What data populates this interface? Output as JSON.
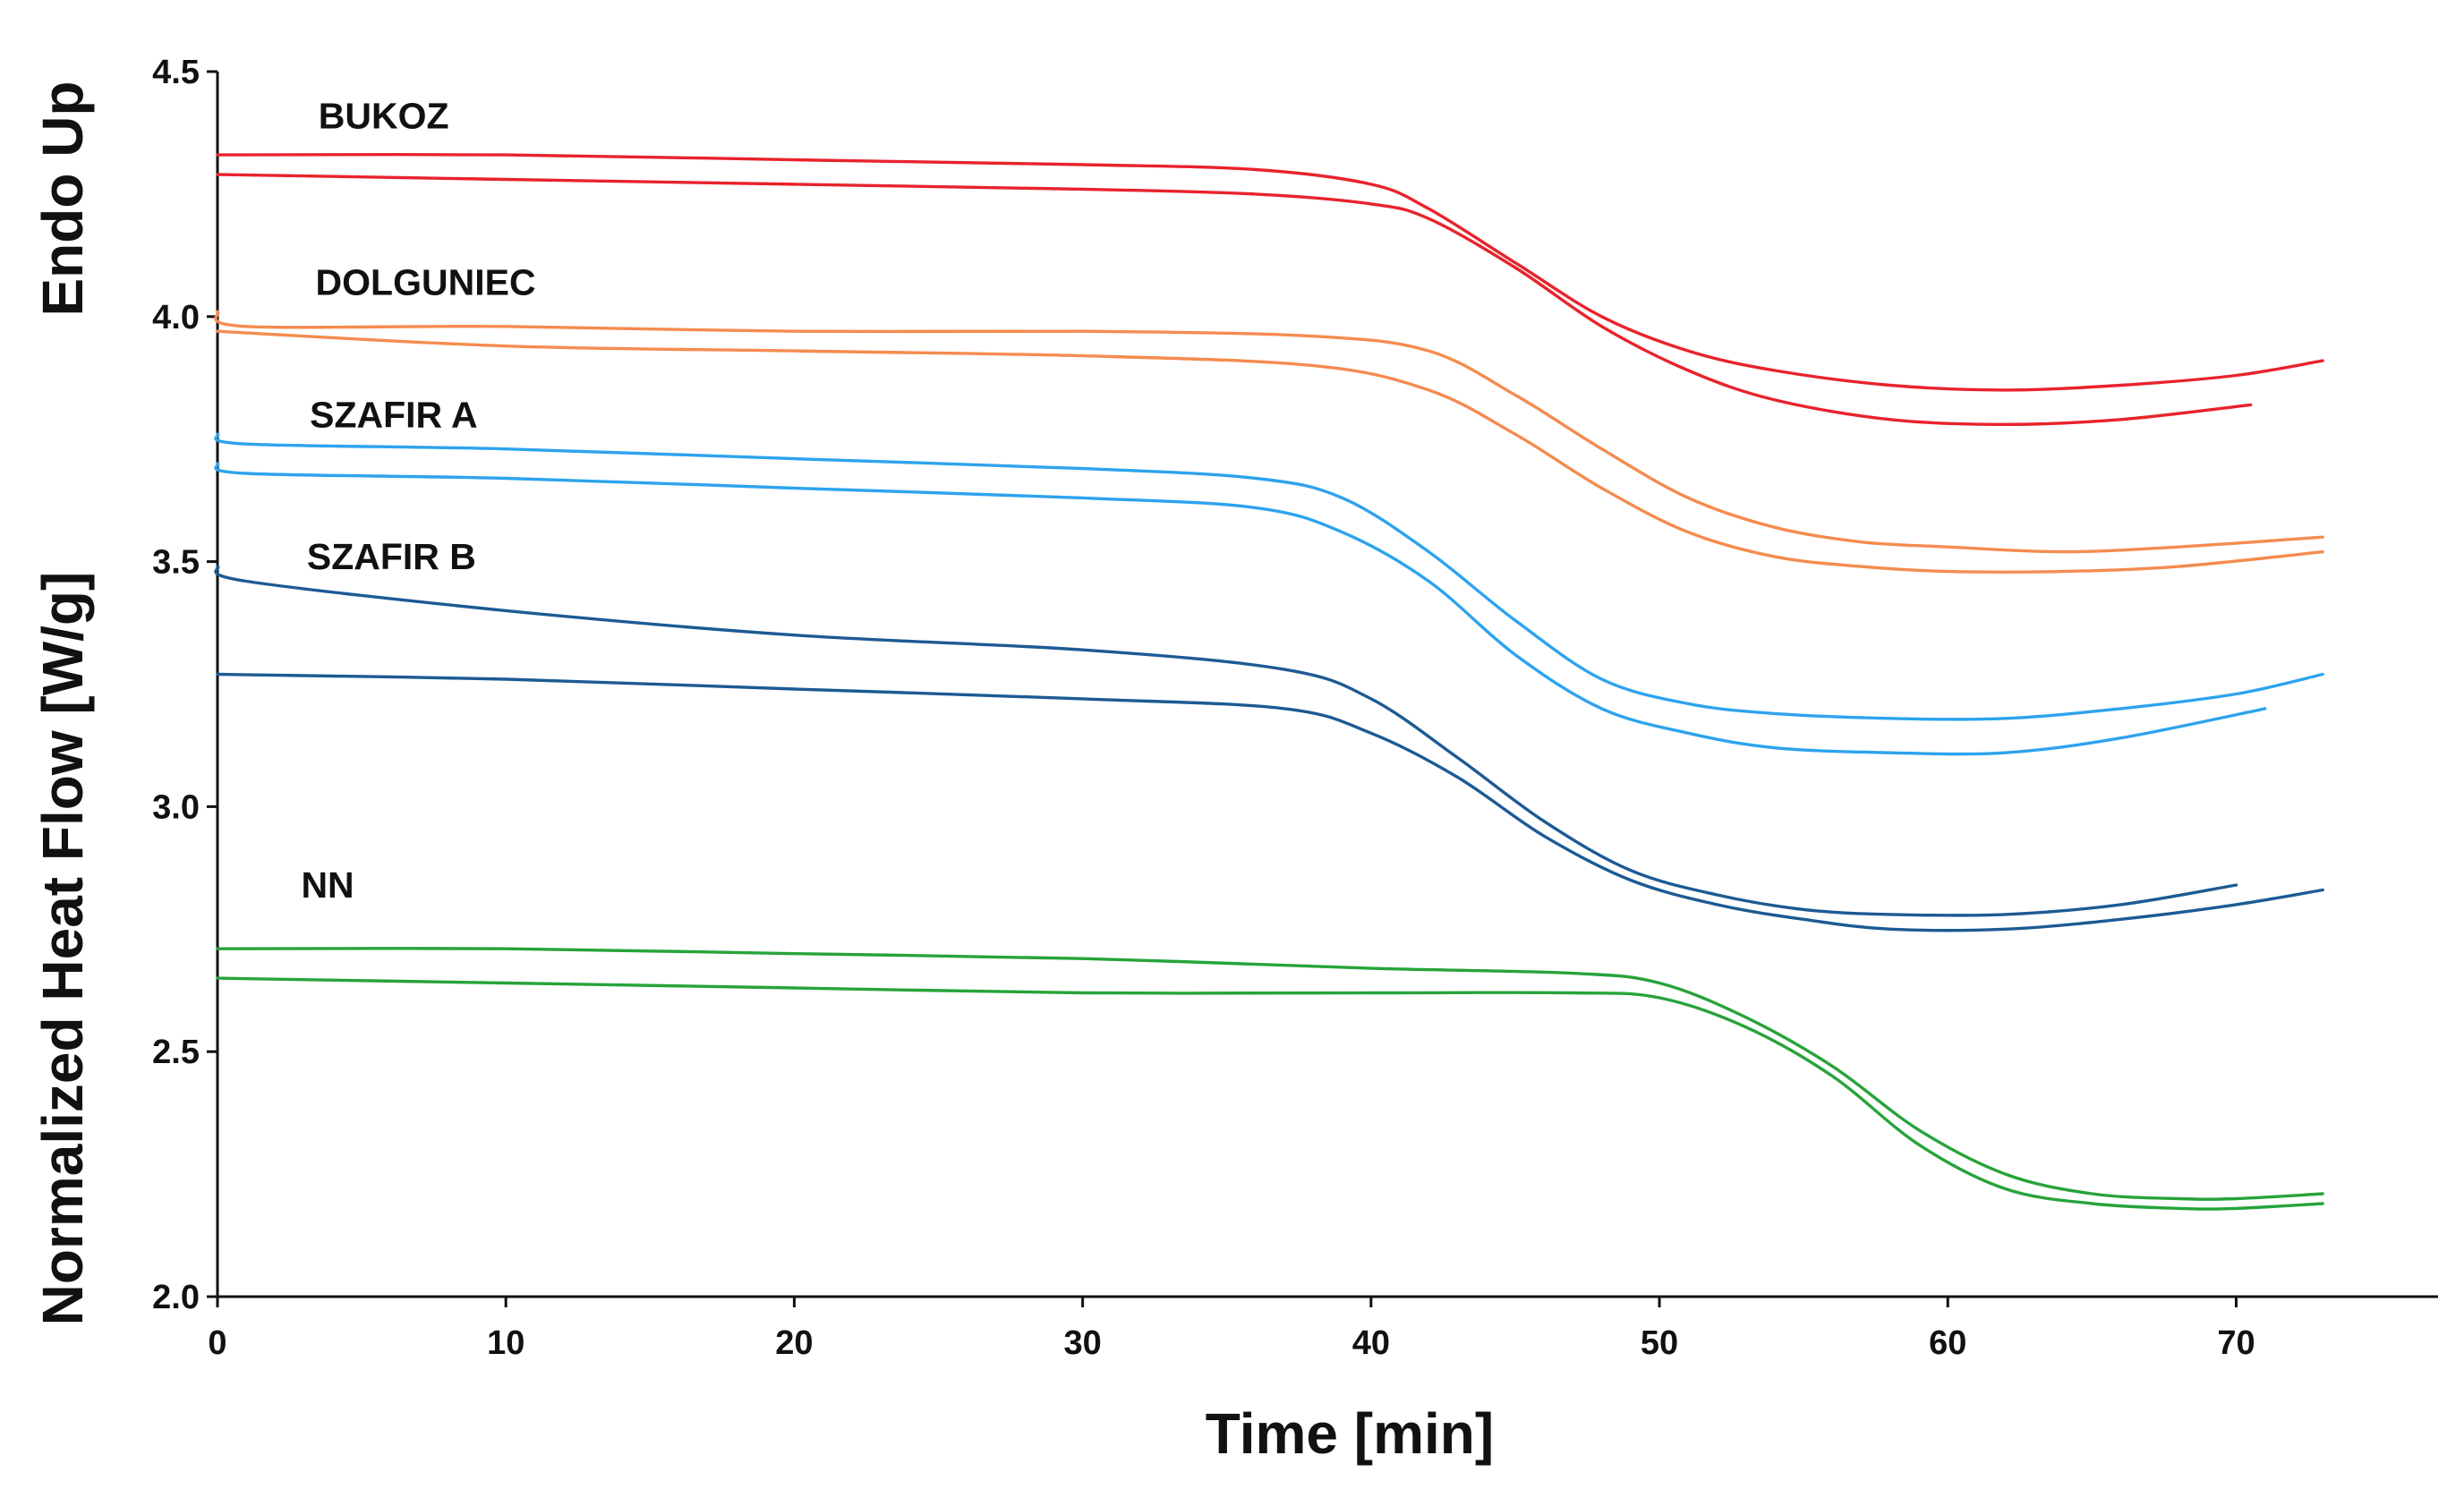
{
  "chart_data": {
    "type": "line",
    "title": "",
    "xlabel": "Time [min]",
    "ylabel": "Normalized Heat Flow [W/g]",
    "y_annotation": "Endo Up",
    "xlim": [
      0,
      77
    ],
    "ylim": [
      2.0,
      4.5
    ],
    "x_ticks": [
      "0",
      "10",
      "20",
      "30",
      "40",
      "50",
      "60",
      "70"
    ],
    "y_ticks": [
      "2.0",
      "2.5",
      "3.0",
      "3.5",
      "4.0",
      "4.5"
    ],
    "grid": false,
    "labels": [
      {
        "text": "BUKOZ",
        "x": 3.5,
        "y": 4.41
      },
      {
        "text": "DOLGUNIEC",
        "x": 3.4,
        "y": 4.07
      },
      {
        "text": "SZAFIR A",
        "x": 3.2,
        "y": 3.8
      },
      {
        "text": "SZAFIR B",
        "x": 3.1,
        "y": 3.51
      },
      {
        "text": "NN",
        "x": 2.9,
        "y": 2.84
      }
    ],
    "series": [
      {
        "name": "BUKOZ-1",
        "group": "BUKOZ",
        "color": "#e8232c",
        "x": [
          0,
          10,
          20,
          30,
          36,
          40,
          42,
          45,
          48,
          51,
          54,
          58,
          62,
          66,
          70,
          73
        ],
        "y": [
          4.33,
          4.33,
          4.32,
          4.31,
          4.3,
          4.27,
          4.22,
          4.11,
          4.0,
          3.93,
          3.89,
          3.86,
          3.85,
          3.86,
          3.88,
          3.91
        ]
      },
      {
        "name": "BUKOZ-2",
        "group": "BUKOZ",
        "color": "#e8232c",
        "x": [
          0,
          10,
          20,
          30,
          36,
          40,
          42,
          45,
          48,
          51,
          54,
          58,
          62,
          66,
          70.5
        ],
        "y": [
          4.29,
          4.28,
          4.27,
          4.26,
          4.25,
          4.23,
          4.2,
          4.1,
          3.98,
          3.89,
          3.83,
          3.79,
          3.78,
          3.79,
          3.82
        ]
      },
      {
        "name": "DOLGUNIEC-1",
        "group": "DOLGUNIEC",
        "color": "#f58b4f",
        "x": [
          0,
          1,
          10,
          20,
          30,
          38,
          42,
          45,
          48,
          51,
          54,
          57,
          60,
          64,
          68,
          73
        ],
        "y": [
          4.01,
          3.98,
          3.98,
          3.97,
          3.97,
          3.96,
          3.93,
          3.84,
          3.73,
          3.63,
          3.57,
          3.54,
          3.53,
          3.52,
          3.53,
          3.55
        ]
      },
      {
        "name": "DOLGUNIEC-2",
        "group": "DOLGUNIEC",
        "color": "#f58b4f",
        "x": [
          0,
          10,
          20,
          30,
          38,
          42,
          45,
          48,
          51,
          54,
          57,
          60,
          64,
          68,
          73
        ],
        "y": [
          3.97,
          3.94,
          3.93,
          3.92,
          3.9,
          3.85,
          3.76,
          3.65,
          3.56,
          3.51,
          3.49,
          3.48,
          3.48,
          3.49,
          3.52
        ]
      },
      {
        "name": "SZAFIR A-1",
        "group": "SZAFIR A",
        "color": "#2ea3ee",
        "x": [
          0,
          1,
          10,
          20,
          30,
          36,
          39,
          42,
          45,
          48,
          51,
          54,
          58,
          62,
          66,
          70,
          73
        ],
        "y": [
          3.76,
          3.74,
          3.73,
          3.71,
          3.69,
          3.67,
          3.63,
          3.52,
          3.38,
          3.26,
          3.21,
          3.19,
          3.18,
          3.18,
          3.2,
          3.23,
          3.27
        ]
      },
      {
        "name": "SZAFIR A-2",
        "group": "SZAFIR A",
        "color": "#2ea3ee",
        "x": [
          0,
          1,
          10,
          20,
          30,
          36,
          39,
          42,
          45,
          48,
          51,
          54,
          58,
          62,
          66,
          71
        ],
        "y": [
          3.7,
          3.68,
          3.67,
          3.65,
          3.63,
          3.61,
          3.56,
          3.46,
          3.31,
          3.2,
          3.15,
          3.12,
          3.11,
          3.11,
          3.14,
          3.2
        ]
      },
      {
        "name": "SZAFIR B-1",
        "group": "SZAFIR B",
        "color": "#1c5a94",
        "x": [
          0,
          1,
          10,
          20,
          30,
          37,
          40,
          43,
          46,
          49,
          52,
          55,
          58,
          62,
          66,
          70
        ],
        "y": [
          3.49,
          3.46,
          3.4,
          3.35,
          3.32,
          3.28,
          3.22,
          3.1,
          2.97,
          2.87,
          2.82,
          2.79,
          2.78,
          2.78,
          2.8,
          2.84
        ]
      },
      {
        "name": "SZAFIR B-2",
        "group": "SZAFIR B",
        "color": "#1c5a94",
        "x": [
          0,
          10,
          20,
          30,
          37,
          40,
          43,
          46,
          49,
          52,
          55,
          58,
          62,
          66,
          70,
          73
        ],
        "y": [
          3.27,
          3.26,
          3.24,
          3.22,
          3.2,
          3.15,
          3.06,
          2.94,
          2.85,
          2.8,
          2.77,
          2.75,
          2.75,
          2.77,
          2.8,
          2.83
        ]
      },
      {
        "name": "NN-1",
        "group": "NN",
        "color": "#27a33a",
        "x": [
          0,
          10,
          20,
          30,
          40,
          47,
          50,
          53,
          56,
          59,
          62,
          65,
          68,
          70,
          73
        ],
        "y": [
          2.71,
          2.71,
          2.7,
          2.69,
          2.67,
          2.66,
          2.64,
          2.57,
          2.47,
          2.34,
          2.25,
          2.21,
          2.2,
          2.2,
          2.21
        ]
      },
      {
        "name": "NN-2",
        "group": "NN",
        "color": "#27a33a",
        "x": [
          0,
          10,
          20,
          30,
          40,
          47,
          50,
          53,
          56,
          59,
          62,
          65,
          68,
          70,
          73
        ],
        "y": [
          2.65,
          2.64,
          2.63,
          2.62,
          2.62,
          2.62,
          2.61,
          2.55,
          2.45,
          2.31,
          2.22,
          2.19,
          2.18,
          2.18,
          2.19
        ]
      }
    ]
  }
}
